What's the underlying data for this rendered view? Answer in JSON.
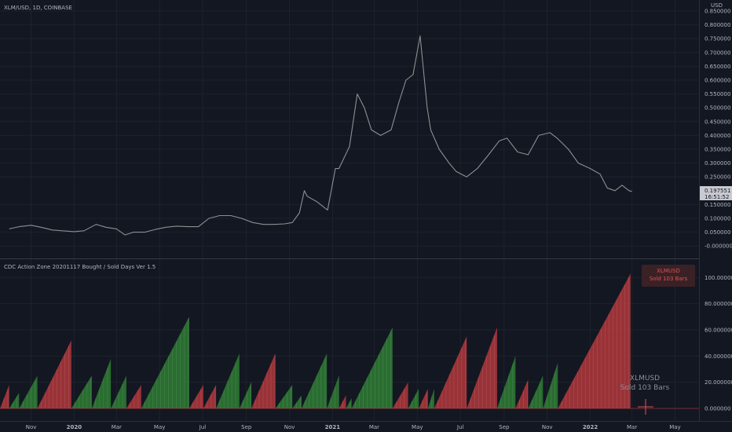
{
  "header": {
    "symbol_title": "XLM/USD, 1D, COINBASE",
    "price_axis_unit": "USD"
  },
  "price_badge": {
    "price": "0.197551",
    "countdown": "16:51:52"
  },
  "indicator": {
    "title": "CDC Action Zone 20201117 Bought / Sold  Days Ver 1.5",
    "tag_symbol": "XLMUSD",
    "tag_text": "Sold 103 Bars",
    "ghost_symbol": "XLMUSD",
    "ghost_text": "Sold 103 Bars"
  },
  "colors": {
    "background": "#131722",
    "grid": "#1e222d",
    "price_line": "#8f8f8f",
    "bought": "#2e7d32",
    "sold": "#b2373b",
    "axis_text": "#b2b5be",
    "divider": "#363a45",
    "badge": "#c8cad0"
  },
  "chart_data": [
    {
      "type": "line",
      "panel": "price",
      "name": "XLM/USD",
      "ylim": [
        -0.025,
        0.85
      ],
      "y_ticks": [
        -0.0,
        0.05,
        0.1,
        0.15,
        0.25,
        0.3,
        0.35,
        0.4,
        0.45,
        0.5,
        0.55,
        0.6,
        0.65,
        0.7,
        0.75,
        0.8,
        0.85
      ],
      "y_tick_labels": [
        "-0.000000",
        "0.050000",
        "0.100000",
        "0.150000",
        "0.250000",
        "0.300000",
        "0.350000",
        "0.400000",
        "0.450000",
        "0.500000",
        "0.550000",
        "0.600000",
        "0.650000",
        "0.700000",
        "0.750000",
        "0.800000",
        "0.850000"
      ],
      "x": [
        "2019-10-01",
        "2019-10-15",
        "2019-11-01",
        "2019-11-15",
        "2019-12-01",
        "2019-12-15",
        "2020-01-01",
        "2020-01-15",
        "2020-02-01",
        "2020-02-15",
        "2020-03-01",
        "2020-03-13",
        "2020-03-25",
        "2020-04-10",
        "2020-04-25",
        "2020-05-10",
        "2020-05-25",
        "2020-06-10",
        "2020-06-25",
        "2020-07-10",
        "2020-07-25",
        "2020-08-10",
        "2020-08-25",
        "2020-09-10",
        "2020-09-25",
        "2020-10-10",
        "2020-10-25",
        "2020-11-05",
        "2020-11-15",
        "2020-11-22",
        "2020-11-26",
        "2020-12-10",
        "2020-12-25",
        "2021-01-05",
        "2021-01-10",
        "2021-01-25",
        "2021-02-05",
        "2021-02-15",
        "2021-02-25",
        "2021-03-10",
        "2021-03-25",
        "2021-04-05",
        "2021-04-15",
        "2021-04-25",
        "2021-05-05",
        "2021-05-15",
        "2021-05-20",
        "2021-06-01",
        "2021-06-15",
        "2021-06-25",
        "2021-07-10",
        "2021-07-25",
        "2021-08-10",
        "2021-08-25",
        "2021-09-05",
        "2021-09-20",
        "2021-10-05",
        "2021-10-20",
        "2021-11-05",
        "2021-11-15",
        "2021-12-01",
        "2021-12-15",
        "2022-01-01",
        "2022-01-15",
        "2022-01-25",
        "2022-02-05",
        "2022-02-15",
        "2022-02-25",
        "2022-03-01"
      ],
      "values": [
        0.062,
        0.07,
        0.075,
        0.068,
        0.058,
        0.055,
        0.052,
        0.055,
        0.078,
        0.068,
        0.062,
        0.04,
        0.05,
        0.05,
        0.06,
        0.068,
        0.072,
        0.07,
        0.07,
        0.1,
        0.11,
        0.11,
        0.1,
        0.085,
        0.078,
        0.078,
        0.08,
        0.085,
        0.12,
        0.2,
        0.18,
        0.16,
        0.13,
        0.28,
        0.28,
        0.36,
        0.55,
        0.5,
        0.42,
        0.4,
        0.42,
        0.52,
        0.6,
        0.62,
        0.76,
        0.5,
        0.42,
        0.35,
        0.3,
        0.27,
        0.25,
        0.28,
        0.33,
        0.38,
        0.39,
        0.34,
        0.33,
        0.4,
        0.41,
        0.39,
        0.35,
        0.3,
        0.28,
        0.26,
        0.21,
        0.2,
        0.22,
        0.2,
        0.197551
      ]
    },
    {
      "type": "area",
      "panel": "indicator",
      "name": "CDC Action Zone",
      "ylim": [
        -6.0,
        108.0
      ],
      "y_ticks": [
        0,
        20,
        40,
        60,
        80,
        100
      ],
      "y_tick_labels": [
        "0.000000",
        "20.000000",
        "40.000000",
        "60.000000",
        "80.000000",
        "100.000000"
      ],
      "segments": [
        {
          "start": "2019-09-18",
          "end": "2019-10-01",
          "peak": 18,
          "state": "sold"
        },
        {
          "start": "2019-10-01",
          "end": "2019-10-15",
          "peak": 12,
          "state": "bought"
        },
        {
          "start": "2019-10-15",
          "end": "2019-11-10",
          "peak": 25,
          "state": "bought"
        },
        {
          "start": "2019-11-10",
          "end": "2019-12-28",
          "peak": 52,
          "state": "sold"
        },
        {
          "start": "2019-12-28",
          "end": "2020-01-26",
          "peak": 25,
          "state": "bought"
        },
        {
          "start": "2020-01-26",
          "end": "2020-02-22",
          "peak": 38,
          "state": "bought"
        },
        {
          "start": "2020-02-22",
          "end": "2020-03-15",
          "peak": 25,
          "state": "bought"
        },
        {
          "start": "2020-03-15",
          "end": "2020-04-05",
          "peak": 18,
          "state": "sold"
        },
        {
          "start": "2020-04-05",
          "end": "2020-06-12",
          "peak": 70,
          "state": "bought"
        },
        {
          "start": "2020-06-12",
          "end": "2020-07-02",
          "peak": 18,
          "state": "sold"
        },
        {
          "start": "2020-07-02",
          "end": "2020-07-20",
          "peak": 18,
          "state": "sold"
        },
        {
          "start": "2020-07-20",
          "end": "2020-08-22",
          "peak": 42,
          "state": "bought"
        },
        {
          "start": "2020-08-22",
          "end": "2020-09-08",
          "peak": 20,
          "state": "bought"
        },
        {
          "start": "2020-09-08",
          "end": "2020-10-12",
          "peak": 42,
          "state": "sold"
        },
        {
          "start": "2020-10-12",
          "end": "2020-11-05",
          "peak": 18,
          "state": "bought"
        },
        {
          "start": "2020-11-05",
          "end": "2020-11-18",
          "peak": 10,
          "state": "bought"
        },
        {
          "start": "2020-11-18",
          "end": "2020-12-24",
          "peak": 42,
          "state": "bought"
        },
        {
          "start": "2020-12-24",
          "end": "2021-01-10",
          "peak": 25,
          "state": "bought"
        },
        {
          "start": "2021-01-10",
          "end": "2021-01-20",
          "peak": 10,
          "state": "sold"
        },
        {
          "start": "2021-01-20",
          "end": "2021-01-28",
          "peak": 8,
          "state": "bought"
        },
        {
          "start": "2021-01-28",
          "end": "2021-03-27",
          "peak": 62,
          "state": "bought"
        },
        {
          "start": "2021-03-27",
          "end": "2021-04-18",
          "peak": 20,
          "state": "sold"
        },
        {
          "start": "2021-04-18",
          "end": "2021-05-03",
          "peak": 15,
          "state": "bought"
        },
        {
          "start": "2021-05-03",
          "end": "2021-05-16",
          "peak": 15,
          "state": "sold"
        },
        {
          "start": "2021-05-16",
          "end": "2021-05-25",
          "peak": 15,
          "state": "bought"
        },
        {
          "start": "2021-05-25",
          "end": "2021-07-10",
          "peak": 55,
          "state": "sold"
        },
        {
          "start": "2021-07-10",
          "end": "2021-08-22",
          "peak": 62,
          "state": "sold"
        },
        {
          "start": "2021-08-22",
          "end": "2021-09-17",
          "peak": 40,
          "state": "bought"
        },
        {
          "start": "2021-09-17",
          "end": "2021-10-05",
          "peak": 22,
          "state": "sold"
        },
        {
          "start": "2021-10-05",
          "end": "2021-10-26",
          "peak": 25,
          "state": "bought"
        },
        {
          "start": "2021-10-26",
          "end": "2021-11-16",
          "peak": 35,
          "state": "bought"
        },
        {
          "start": "2021-11-16",
          "end": "2022-02-27",
          "peak": 103,
          "state": "sold"
        }
      ]
    },
    {
      "type": "axis",
      "panel": "time",
      "tick_dates": [
        "2019-11-01",
        "2020-01-01",
        "2020-03-01",
        "2020-05-01",
        "2020-07-01",
        "2020-09-01",
        "2020-11-01",
        "2021-01-01",
        "2021-03-01",
        "2021-05-01",
        "2021-07-01",
        "2021-09-01",
        "2021-11-01",
        "2022-01-01",
        "2022-03-01",
        "2022-05-01"
      ],
      "tick_labels": [
        "Nov",
        "2020",
        "Mar",
        "May",
        "Jul",
        "Sep",
        "Nov",
        "2021",
        "Mar",
        "May",
        "Jul",
        "Sep",
        "Nov",
        "2022",
        "Mar",
        "May"
      ],
      "year_labels": [
        "2020",
        "2021",
        "2022"
      ]
    }
  ]
}
